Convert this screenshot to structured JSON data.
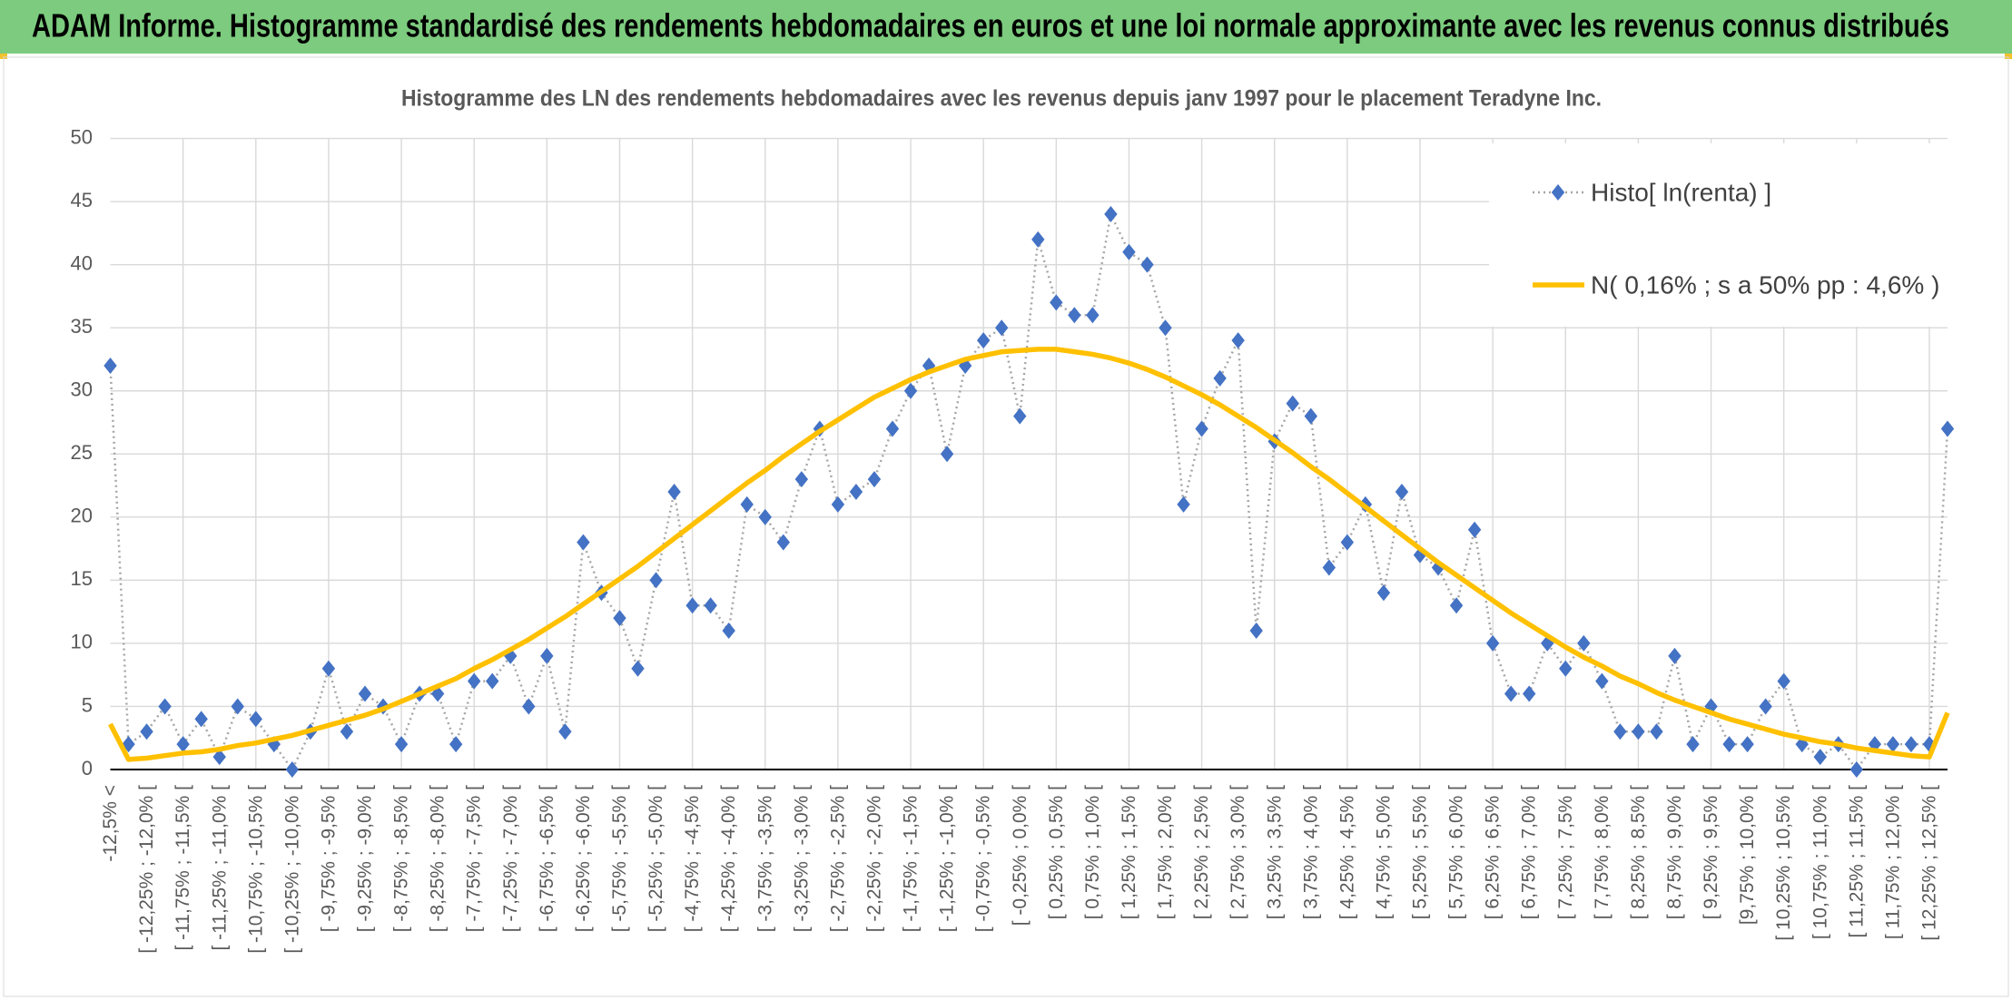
{
  "chart_data": {
    "type": "line",
    "title": "ADAM Informe. Histogramme standardisé des rendements hebdomadaires en euros et une loi normale approximante avec les revenus connus distribués",
    "subtitle": "Histogramme des LN des rendements hebdomadaires avec les revenus depuis janv 1997 pour le placement Teradyne Inc.",
    "categories": [
      "-12,5% <",
      null,
      "[ -12,25% ; -12,0% [",
      null,
      "[ -11,75% ; -11,5% [",
      null,
      "[ -11,25% ; -11,0% [",
      null,
      "[ -10,75% ; -10,5% [",
      null,
      "[ -10,25% ; -10,0% [",
      null,
      "[ -9,75% ; -9,5% [",
      null,
      "[ -9,25% ; -9,0% [",
      null,
      "[ -8,75% ; -8,5% [",
      null,
      "[ -8,25% ; -8,0% [",
      null,
      "[ -7,75% ; -7,5% [",
      null,
      "[ -7,25% ; -7,0% [",
      null,
      "[ -6,75% ; -6,5% [",
      null,
      "[ -6,25% ; -6,0% [",
      null,
      "[ -5,75% ; -5,5% [",
      null,
      "[ -5,25% ; -5,0% [",
      null,
      "[ -4,75% ; -4,5% [",
      null,
      "[ -4,25% ; -4,0% [",
      null,
      "[ -3,75% ; -3,5% [",
      null,
      "[ -3,25% ; -3,0% [",
      null,
      "[ -2,75% ; -2,5% [",
      null,
      "[ -2,25% ; -2,0% [",
      null,
      "[ -1,75% ; -1,5% [",
      null,
      "[ -1,25% ; -1,0% [",
      null,
      "[ -0,75% ; -0,5% [",
      null,
      "[ -0,25% ; 0,0% [",
      null,
      "[ 0,25% ; 0,5% [",
      null,
      "[ 0,75% ; 1,0% [",
      null,
      "[ 1,25% ; 1,5% [",
      null,
      "[ 1,75% ; 2,0% [",
      null,
      "[ 2,25% ; 2,5% [",
      null,
      "[ 2,75% ; 3,0% [",
      null,
      "[ 3,25% ; 3,5% [",
      null,
      "[ 3,75% ; 4,0% [",
      null,
      "[ 4,25% ; 4,5% [",
      null,
      "[ 4,75% ; 5,0% [",
      null,
      "[ 5,25% ; 5,5% [",
      null,
      "[ 5,75% ; 6,0% [",
      null,
      "[ 6,25% ; 6,5% [",
      null,
      "[ 6,75% ; 7,0% [",
      null,
      "[ 7,25% ; 7,5% [",
      null,
      "[ 7,75% ; 8,0% [",
      null,
      "[ 8,25% ; 8,5% [",
      null,
      "[ 8,75% ; 9,0% [",
      null,
      "[ 9,25% ; 9,5% [",
      null,
      "[9,75% ; 10,0% [",
      null,
      "[ 10,25% ; 10,5% [",
      null,
      "[ 10,75% ; 11,0% [",
      null,
      "[ 11,25% ; 11,5% [",
      null,
      "[ 11,75% ; 12,0% [",
      null,
      "[ 12,25% ; 12,5% [",
      null
    ],
    "series": [
      {
        "name": "Histo[ ln(renta) ]",
        "color": "#4472c4",
        "line_color": "#a6a6a6",
        "marker": "diamond",
        "values": [
          32,
          2,
          3,
          5,
          2,
          4,
          1,
          5,
          4,
          2,
          0,
          3,
          8,
          3,
          6,
          5,
          2,
          6,
          6,
          2,
          7,
          7,
          9,
          5,
          9,
          3,
          18,
          14,
          12,
          8,
          15,
          22,
          13,
          13,
          11,
          21,
          20,
          18,
          23,
          27,
          21,
          22,
          23,
          27,
          30,
          32,
          25,
          32,
          34,
          35,
          28,
          42,
          37,
          36,
          36,
          44,
          41,
          40,
          35,
          21,
          27,
          31,
          34,
          11,
          26,
          29,
          28,
          16,
          18,
          21,
          14,
          22,
          17,
          16,
          13,
          19,
          10,
          6,
          6,
          10,
          8,
          10,
          7,
          3,
          3,
          3,
          9,
          2,
          5,
          2,
          2,
          5,
          7,
          2,
          1,
          2,
          0,
          2,
          2,
          2,
          2,
          27
        ]
      },
      {
        "name": "N( 0,16% ; s a 50% pp : 4,6% )",
        "color": "#ffc000",
        "values": [
          3.6,
          0.8,
          0.9,
          1.1,
          1.3,
          1.4,
          1.6,
          1.9,
          2.1,
          2.4,
          2.7,
          3.1,
          3.5,
          3.9,
          4.3,
          4.8,
          5.4,
          6.0,
          6.6,
          7.2,
          8.0,
          8.7,
          9.5,
          10.3,
          11.2,
          12.1,
          13.1,
          14.1,
          15.1,
          16.1,
          17.2,
          18.3,
          19.4,
          20.5,
          21.6,
          22.7,
          23.7,
          24.8,
          25.8,
          26.8,
          27.7,
          28.6,
          29.5,
          30.2,
          30.9,
          31.5,
          32.0,
          32.5,
          32.8,
          33.1,
          33.2,
          33.3,
          33.3,
          33.1,
          32.9,
          32.6,
          32.2,
          31.7,
          31.1,
          30.4,
          29.7,
          28.9,
          28.0,
          27.1,
          26.1,
          25.1,
          24.0,
          23.0,
          21.9,
          20.8,
          19.7,
          18.6,
          17.5,
          16.4,
          15.4,
          14.4,
          13.4,
          12.4,
          11.5,
          10.6,
          9.7,
          8.9,
          8.2,
          7.4,
          6.8,
          6.1,
          5.5,
          5.0,
          4.5,
          4.0,
          3.6,
          3.2,
          2.8,
          2.5,
          2.2,
          2.0,
          1.7,
          1.5,
          1.3,
          1.1,
          1.0,
          4.5
        ]
      }
    ],
    "ylim": [
      0,
      50
    ],
    "yticks": [
      0,
      5,
      10,
      15,
      20,
      25,
      30,
      35,
      40,
      45,
      50
    ],
    "grid": true,
    "legend": "upper right"
  }
}
